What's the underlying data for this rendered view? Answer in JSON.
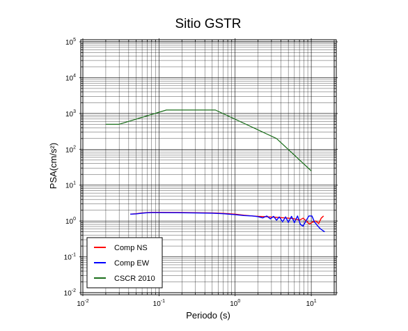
{
  "chart_data": {
    "type": "line",
    "title": "Sitio GSTR",
    "xlabel": "Periodo (s)",
    "ylabel": "PSA(cm/s²)",
    "xscale": "log",
    "yscale": "log",
    "xlim": [
      0.01,
      20
    ],
    "ylim": [
      0.01,
      100000
    ],
    "grid": true,
    "legend_position": "bottom-left",
    "x_ticks": [
      {
        "base": "10",
        "exp": "-2",
        "value": 0.01
      },
      {
        "base": "10",
        "exp": "-1",
        "value": 0.1
      },
      {
        "base": "10",
        "exp": "0",
        "value": 1
      },
      {
        "base": "10",
        "exp": "1",
        "value": 10
      }
    ],
    "y_ticks": [
      {
        "base": "10",
        "exp": "-2",
        "value": 0.01
      },
      {
        "base": "10",
        "exp": "-1",
        "value": 0.1
      },
      {
        "base": "10",
        "exp": "0",
        "value": 1
      },
      {
        "base": "10",
        "exp": "1",
        "value": 10
      },
      {
        "base": "10",
        "exp": "2",
        "value": 100
      },
      {
        "base": "10",
        "exp": "3",
        "value": 1000
      },
      {
        "base": "10",
        "exp": "4",
        "value": 10000
      },
      {
        "base": "10",
        "exp": "5",
        "value": 100000
      }
    ],
    "series": [
      {
        "name": "Comp NS",
        "color": "#ff0000",
        "x": [
          0.042,
          0.05,
          0.06,
          0.07,
          0.08,
          0.1,
          0.15,
          0.2,
          0.3,
          0.5,
          0.7,
          1.0,
          1.3,
          1.7,
          2.0,
          2.4,
          2.8,
          3.2,
          3.6,
          4.0,
          4.5,
          5.0,
          5.6,
          6.3,
          7.0,
          7.8,
          8.6,
          9.5,
          10.5,
          11.5,
          12.5,
          13.5,
          14.5
        ],
        "y": [
          1.55,
          1.6,
          1.68,
          1.72,
          1.75,
          1.75,
          1.74,
          1.73,
          1.71,
          1.68,
          1.63,
          1.55,
          1.45,
          1.38,
          1.35,
          1.33,
          1.3,
          1.28,
          1.26,
          1.24,
          1.22,
          1.2,
          1.18,
          1.12,
          1.05,
          1.2,
          1.0,
          0.82,
          0.95,
          1.0,
          0.85,
          1.2,
          1.38
        ]
      },
      {
        "name": "Comp EW",
        "color": "#0000ff",
        "x": [
          0.042,
          0.05,
          0.06,
          0.07,
          0.08,
          0.1,
          0.15,
          0.2,
          0.3,
          0.5,
          0.7,
          1.0,
          1.3,
          1.7,
          2.0,
          2.3,
          2.6,
          2.9,
          3.2,
          3.5,
          3.8,
          4.2,
          4.6,
          5.0,
          5.5,
          6.0,
          6.6,
          7.2,
          7.8,
          8.5,
          9.3,
          10.2,
          11.0,
          12.0,
          13.0,
          14.0,
          15.0
        ],
        "y": [
          1.55,
          1.58,
          1.65,
          1.7,
          1.72,
          1.72,
          1.71,
          1.7,
          1.68,
          1.65,
          1.6,
          1.5,
          1.42,
          1.38,
          1.32,
          1.22,
          1.38,
          1.15,
          1.35,
          1.05,
          1.3,
          0.95,
          1.3,
          0.92,
          1.35,
          0.9,
          1.38,
          0.8,
          0.72,
          1.0,
          1.38,
          1.38,
          0.95,
          0.75,
          0.62,
          0.55,
          0.5
        ]
      },
      {
        "name": "CSCR 2010",
        "color": "#1a6e1a",
        "x": [
          0.02,
          0.03,
          0.125,
          0.55,
          3.5,
          10.0
        ],
        "y": [
          500,
          500,
          1250,
          1250,
          200,
          25
        ]
      }
    ]
  }
}
